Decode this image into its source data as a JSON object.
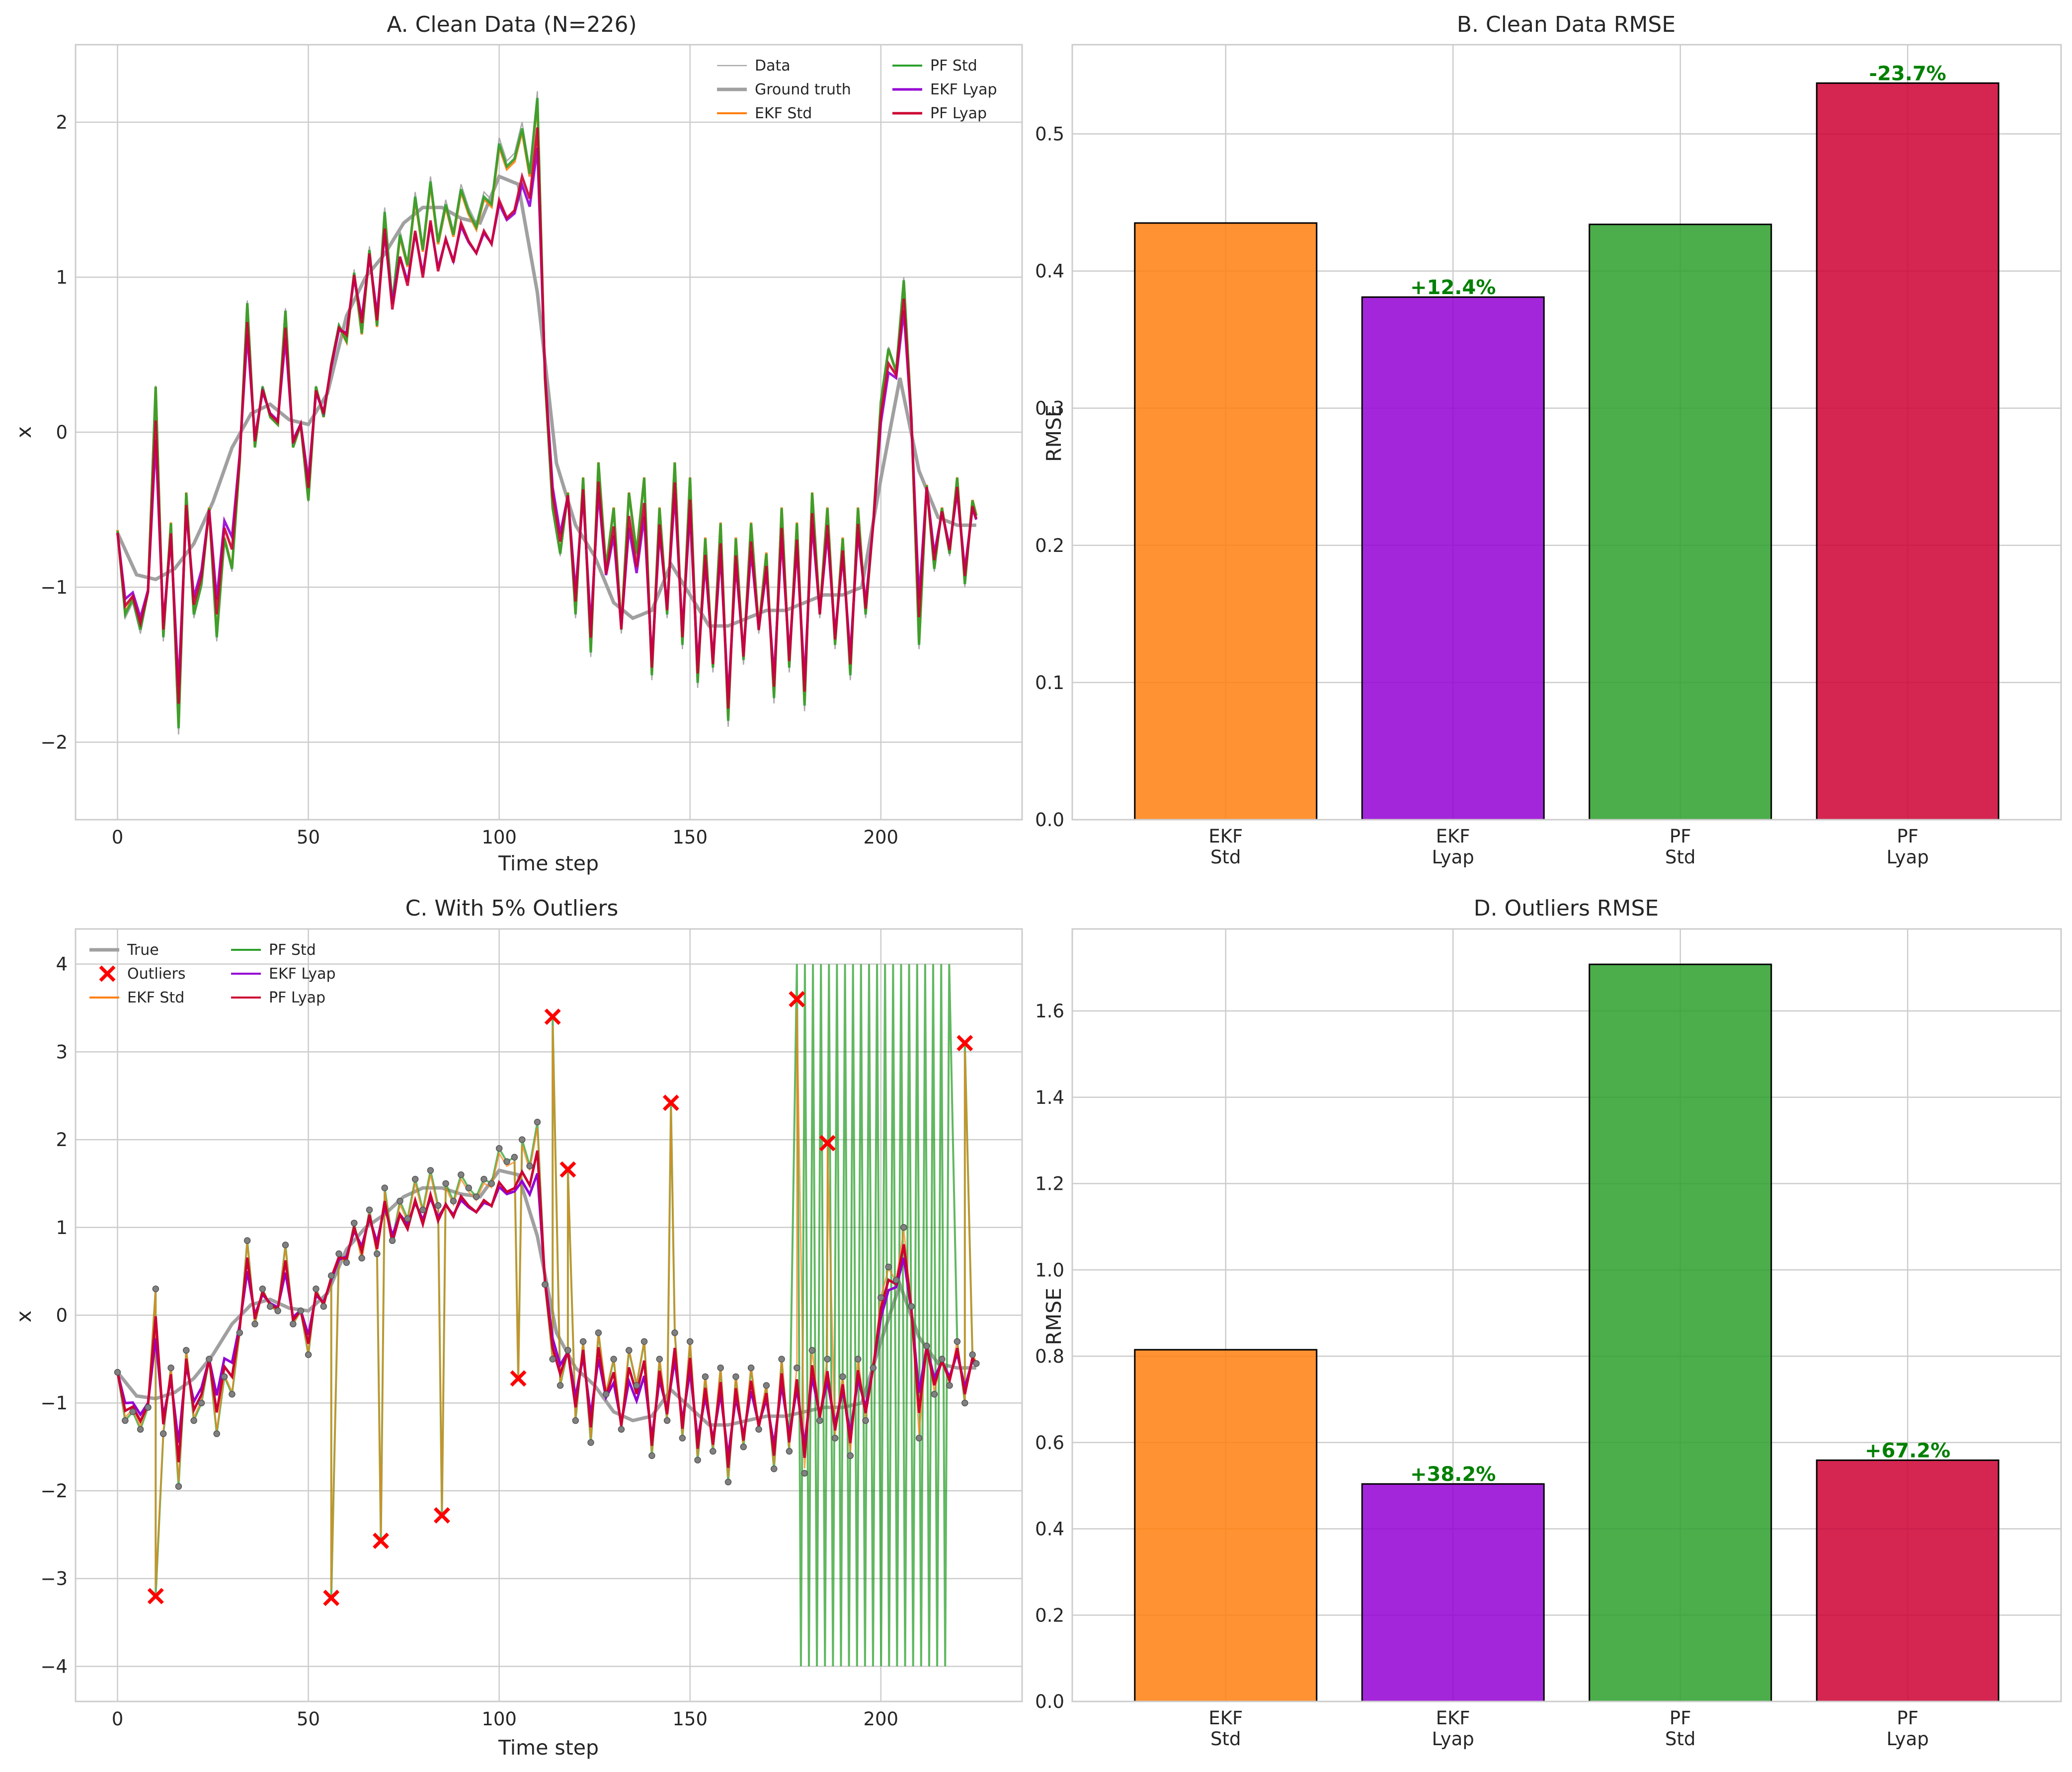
{
  "colors": {
    "data": "#a9a9a9",
    "ground_truth": "#a0a0a0",
    "ekf_std": "#ff7f0e",
    "pf_std": "#2ca02c",
    "ekf_lyap": "#9400d3",
    "pf_lyap": "#cc0033",
    "outlier": "#ff0000",
    "pct_text": "#008000"
  },
  "chart_data": [
    {
      "id": "A",
      "type": "line",
      "title": "A. Clean Data (N=226)",
      "xlabel": "Time step",
      "ylabel": "x",
      "xlim": [
        -11,
        237
      ],
      "ylim": [
        -2.5,
        2.5
      ],
      "xticks": [
        0,
        50,
        100,
        150,
        200
      ],
      "yticks": [
        -2,
        -1,
        0,
        1,
        2
      ],
      "xtick_labels": [
        "0",
        "50",
        "100",
        "150",
        "200"
      ],
      "ytick_labels": [
        "−2",
        "−1",
        "0",
        "1",
        "2"
      ],
      "grid": true,
      "legend_position": "top-right",
      "legend": [
        "Data",
        "Ground truth",
        "EKF Std",
        "PF Std",
        "EKF Lyap",
        "PF Lyap"
      ],
      "ground_truth": {
        "x": [
          0,
          5,
          10,
          15,
          20,
          25,
          30,
          35,
          40,
          45,
          50,
          55,
          60,
          65,
          70,
          75,
          80,
          85,
          90,
          95,
          100,
          105,
          110,
          115,
          120,
          125,
          130,
          135,
          140,
          145,
          150,
          155,
          160,
          165,
          170,
          175,
          180,
          185,
          190,
          195,
          200,
          205,
          210,
          215,
          220,
          225
        ],
        "y": [
          -0.65,
          -0.92,
          -0.95,
          -0.88,
          -0.72,
          -0.45,
          -0.1,
          0.12,
          0.18,
          0.08,
          0.05,
          0.25,
          0.75,
          1.0,
          1.15,
          1.35,
          1.45,
          1.45,
          1.38,
          1.35,
          1.65,
          1.6,
          0.9,
          -0.2,
          -0.6,
          -0.8,
          -1.1,
          -1.2,
          -1.15,
          -0.85,
          -1.05,
          -1.25,
          -1.25,
          -1.2,
          -1.15,
          -1.15,
          -1.1,
          -1.05,
          -1.05,
          -1.0,
          -0.3,
          0.35,
          -0.25,
          -0.55,
          -0.6,
          -0.6
        ]
      },
      "observations": {
        "x": [
          0,
          2,
          4,
          6,
          8,
          10,
          12,
          14,
          16,
          18,
          20,
          22,
          24,
          26,
          28,
          30,
          32,
          34,
          36,
          38,
          40,
          42,
          44,
          46,
          48,
          50,
          52,
          54,
          56,
          58,
          60,
          62,
          64,
          66,
          68,
          70,
          72,
          74,
          76,
          78,
          80,
          82,
          84,
          86,
          88,
          90,
          92,
          94,
          96,
          98,
          100,
          102,
          104,
          106,
          108,
          110,
          112,
          114,
          116,
          118,
          120,
          122,
          124,
          126,
          128,
          130,
          132,
          134,
          136,
          138,
          140,
          142,
          144,
          146,
          148,
          150,
          152,
          154,
          156,
          158,
          160,
          162,
          164,
          166,
          168,
          170,
          172,
          174,
          176,
          178,
          180,
          182,
          184,
          186,
          188,
          190,
          192,
          194,
          196,
          198,
          200,
          202,
          204,
          206,
          208,
          210,
          212,
          214,
          216,
          218,
          220,
          222,
          224,
          225
        ],
        "y": [
          -0.65,
          -1.2,
          -1.1,
          -1.3,
          -1.05,
          0.3,
          -1.35,
          -0.6,
          -1.95,
          -0.4,
          -1.2,
          -1.0,
          -0.5,
          -1.35,
          -0.7,
          -0.9,
          -0.2,
          0.85,
          -0.1,
          0.3,
          0.1,
          0.05,
          0.8,
          -0.1,
          0.05,
          -0.45,
          0.3,
          0.1,
          0.45,
          0.7,
          0.6,
          1.05,
          0.65,
          1.2,
          0.7,
          1.45,
          0.85,
          1.3,
          1.1,
          1.55,
          1.2,
          1.65,
          1.25,
          1.5,
          1.3,
          1.6,
          1.45,
          1.35,
          1.55,
          1.5,
          1.9,
          1.75,
          1.8,
          2.0,
          1.7,
          2.2,
          0.35,
          -0.5,
          -0.8,
          -0.4,
          -1.2,
          -0.3,
          -1.45,
          -0.2,
          -0.9,
          -0.5,
          -1.3,
          -0.4,
          -0.8,
          -0.3,
          -1.6,
          -0.5,
          -1.2,
          -0.2,
          -1.4,
          -0.3,
          -1.65,
          -0.7,
          -1.55,
          -0.6,
          -1.9,
          -0.7,
          -1.5,
          -0.6,
          -1.3,
          -0.8,
          -1.75,
          -0.5,
          -1.55,
          -0.6,
          -1.8,
          -0.4,
          -1.2,
          -0.5,
          -1.4,
          -0.7,
          -1.6,
          -0.5,
          -1.2,
          -0.6,
          0.2,
          0.55,
          0.4,
          1.0,
          0.1,
          -1.4,
          -0.35,
          -0.9,
          -0.5,
          -0.8,
          -0.3,
          -1.0,
          -0.45,
          -0.55
        ]
      },
      "series": [
        {
          "name": "EKF Std",
          "color": "ekf_std",
          "mode": "obs",
          "gain": 0.97
        },
        {
          "name": "PF Std",
          "color": "pf_std",
          "mode": "obs",
          "gain": 0.98
        },
        {
          "name": "EKF Lyap",
          "color": "ekf_lyap",
          "mode": "damped",
          "gain": 0.72
        },
        {
          "name": "PF Lyap",
          "color": "pf_lyap",
          "mode": "damped",
          "gain": 0.82
        }
      ]
    },
    {
      "id": "B",
      "type": "bar",
      "title": "B. Clean Data RMSE",
      "xlabel": "",
      "ylabel": "RMSE",
      "ylim": [
        0,
        0.565
      ],
      "yticks": [
        0.0,
        0.1,
        0.2,
        0.3,
        0.4,
        0.5
      ],
      "ytick_labels": [
        "0.0",
        "0.1",
        "0.2",
        "0.3",
        "0.4",
        "0.5"
      ],
      "grid": true,
      "categories": [
        [
          "EKF",
          "Std"
        ],
        [
          "EKF",
          "Lyap"
        ],
        [
          "PF",
          "Std"
        ],
        [
          "PF",
          "Lyap"
        ]
      ],
      "values": [
        0.435,
        0.381,
        0.434,
        0.537
      ],
      "colors": [
        "ekf_std",
        "ekf_lyap",
        "pf_std",
        "pf_lyap"
      ],
      "annotations": [
        "",
        "+12.4%",
        "",
        "-23.7%"
      ]
    },
    {
      "id": "C",
      "type": "line",
      "title": "C. With 5% Outliers",
      "xlabel": "Time step",
      "ylabel": "x",
      "xlim": [
        -11,
        237
      ],
      "ylim": [
        -4.4,
        4.4
      ],
      "xticks": [
        0,
        50,
        100,
        150,
        200
      ],
      "yticks": [
        -4,
        -3,
        -2,
        -1,
        0,
        1,
        2,
        3,
        4
      ],
      "xtick_labels": [
        "0",
        "50",
        "100",
        "150",
        "200"
      ],
      "ytick_labels": [
        "−4",
        "−3",
        "−2",
        "−1",
        "0",
        "1",
        "2",
        "3",
        "4"
      ],
      "grid": true,
      "legend_position": "top-left",
      "legend": [
        "True",
        "Outliers",
        "EKF Std",
        "PF Std",
        "EKF Lyap",
        "PF Lyap"
      ],
      "outliers": {
        "x": [
          10,
          56,
          69,
          85,
          105,
          114,
          118,
          145,
          178,
          186,
          222
        ],
        "y": [
          -3.2,
          -3.22,
          -2.57,
          -2.28,
          -0.72,
          3.4,
          1.66,
          2.42,
          3.6,
          1.96,
          3.1
        ]
      },
      "pf_std_oscillation": {
        "x_start": 178,
        "x_end": 218,
        "ylim": [
          -4.0,
          4.0
        ]
      }
    },
    {
      "id": "D",
      "type": "bar",
      "title": "D. Outliers RMSE",
      "xlabel": "",
      "ylabel": "RMSE",
      "ylim": [
        0,
        1.79
      ],
      "yticks": [
        0.0,
        0.2,
        0.4,
        0.6,
        0.8,
        1.0,
        1.2,
        1.4,
        1.6
      ],
      "ytick_labels": [
        "0.0",
        "0.2",
        "0.4",
        "0.6",
        "0.8",
        "1.0",
        "1.2",
        "1.4",
        "1.6"
      ],
      "grid": true,
      "categories": [
        [
          "EKF",
          "Std"
        ],
        [
          "EKF",
          "Lyap"
        ],
        [
          "PF",
          "Std"
        ],
        [
          "PF",
          "Lyap"
        ]
      ],
      "values": [
        0.815,
        0.504,
        1.708,
        0.559
      ],
      "colors": [
        "ekf_std",
        "ekf_lyap",
        "pf_std",
        "pf_lyap"
      ],
      "annotations": [
        "",
        "+38.2%",
        "",
        "+67.2%"
      ]
    }
  ]
}
